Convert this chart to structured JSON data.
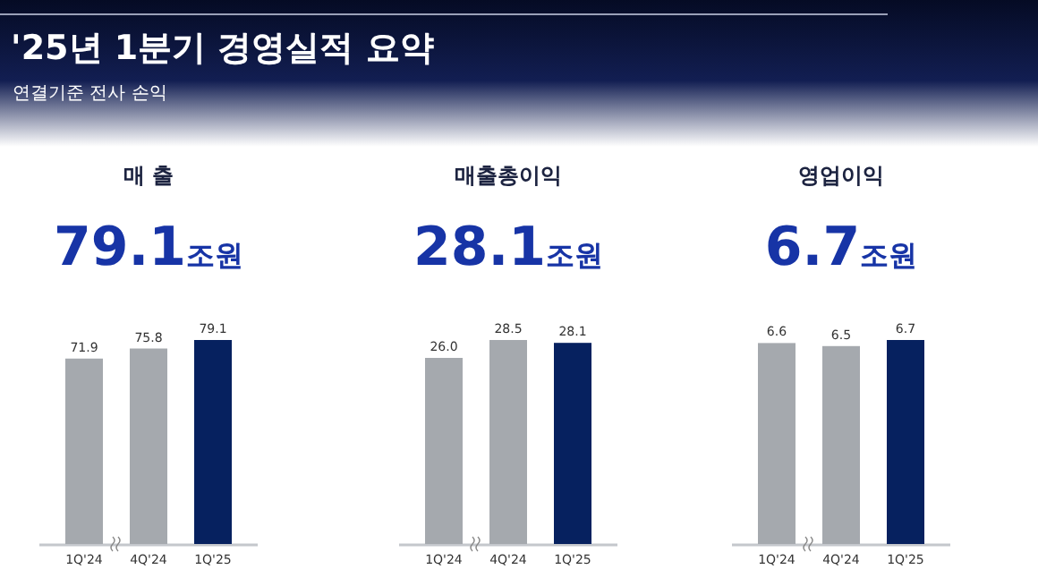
{
  "chart_data": [
    {
      "type": "other",
      "title": "'25년 1분기 경영실적 요약",
      "subtitle": "연결기준 전사 손익"
    },
    {
      "type": "bar",
      "title": "매 출",
      "subtitle": "79.1조원",
      "categories": [
        "1Q'24",
        "4Q'24",
        "1Q'25"
      ],
      "values": [
        71.9,
        75.8,
        79.1
      ],
      "colors": [
        "#a5a9ae",
        "#a5a9ae",
        "#06215f"
      ],
      "value_labels": [
        "71.9",
        "75.8",
        "79.1"
      ]
    },
    {
      "type": "bar",
      "title": "매출총이익",
      "subtitle": "28.1조원",
      "categories": [
        "1Q'24",
        "4Q'24",
        "1Q'25"
      ],
      "values": [
        26.0,
        28.5,
        28.1
      ],
      "colors": [
        "#a5a9ae",
        "#a5a9ae",
        "#06215f"
      ],
      "value_labels": [
        "26.0",
        "28.5",
        "28.1"
      ]
    },
    {
      "type": "bar",
      "title": "영업이익",
      "subtitle": "6.7조원",
      "categories": [
        "1Q'24",
        "4Q'24",
        "1Q'25"
      ],
      "values": [
        6.6,
        6.5,
        6.7
      ],
      "colors": [
        "#a5a9ae",
        "#a5a9ae",
        "#06215f"
      ],
      "value_labels": [
        "6.6",
        "6.5",
        "6.7"
      ]
    }
  ]
}
